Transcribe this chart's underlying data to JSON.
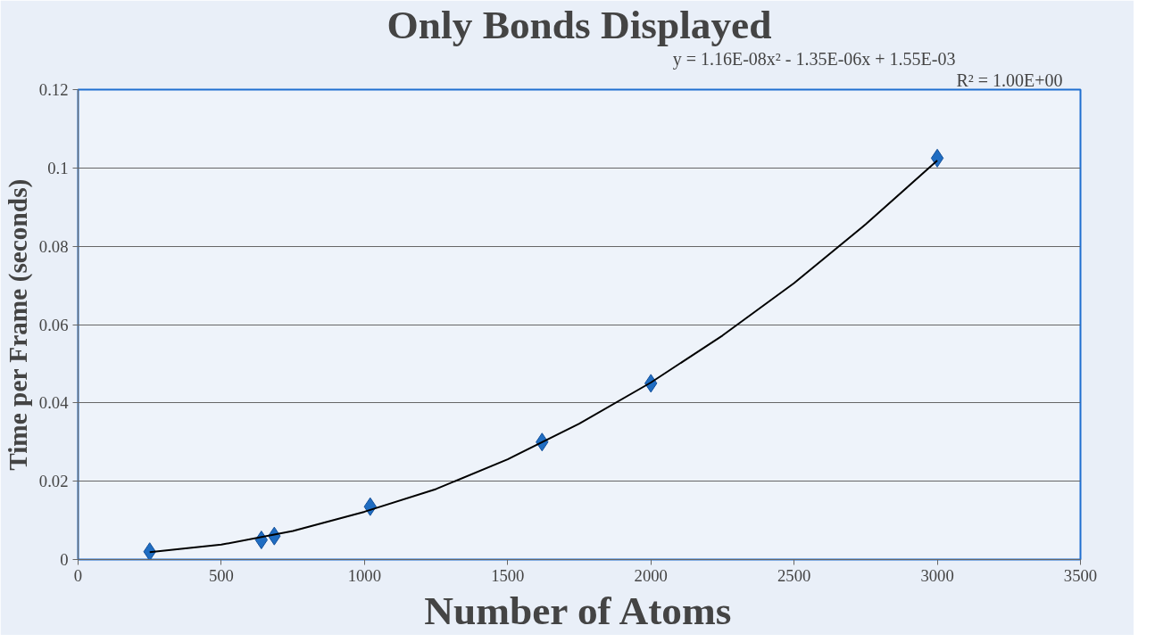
{
  "chart_data": {
    "type": "scatter",
    "title": "Only Bonds Displayed",
    "xlabel": "Number of Atoms",
    "ylabel": "Time per Frame (seconds)",
    "annotations": [
      "y = 1.16E-08x² - 1.35E-06x + 1.55E-03",
      "R² = 1.00E+00"
    ],
    "xlim": [
      0,
      3500
    ],
    "xticks": [
      0,
      500,
      1000,
      1500,
      2000,
      2500,
      3000,
      3500
    ],
    "ylim": [
      0,
      0.12
    ],
    "yticks": [
      0,
      0.02,
      0.04,
      0.06,
      0.08,
      0.1,
      0.12
    ],
    "grid": "y",
    "series": [
      {
        "marker": "diamond",
        "color": "#1f6dc2",
        "x": [
          250,
          640,
          685,
          1020,
          1620,
          2000,
          3000
        ],
        "values": [
          0.002,
          0.005,
          0.006,
          0.0135,
          0.03,
          0.045,
          0.1025
        ]
      },
      {
        "type": "line",
        "color": "#000000",
        "line_style": "solid",
        "x": [
          250,
          500,
          750,
          1000,
          1250,
          1500,
          1750,
          2000,
          2250,
          2500,
          2750,
          3000
        ],
        "values": [
          0.0019,
          0.0038,
          0.0073,
          0.0122,
          0.018,
          0.0256,
          0.0347,
          0.0452,
          0.0572,
          0.0706,
          0.0856,
          0.1019
        ]
      }
    ]
  }
}
